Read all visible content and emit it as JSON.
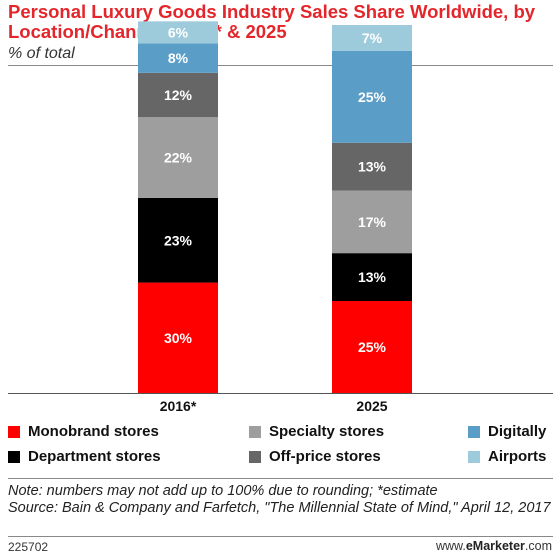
{
  "header": {
    "title": "Personal Luxury Goods Industry Sales Share Worldwide, by Location/Channel, 2016* & 2025",
    "subtitle": "% of total"
  },
  "chart_data": {
    "type": "bar",
    "stacked": true,
    "categories": [
      "2016*",
      "2025"
    ],
    "ylim": [
      0,
      100
    ],
    "grid": false,
    "series": [
      {
        "name": "Monobrand stores",
        "color": "#ff0000",
        "values": [
          30,
          25
        ],
        "labels": [
          "30%",
          "25%"
        ]
      },
      {
        "name": "Department stores",
        "color": "#000000",
        "values": [
          23,
          13
        ],
        "labels": [
          "23%",
          "13%"
        ]
      },
      {
        "name": "Specialty stores",
        "color": "#9e9e9e",
        "values": [
          22,
          17
        ],
        "labels": [
          "22%",
          "17%"
        ]
      },
      {
        "name": "Off-price stores",
        "color": "#666666",
        "values": [
          12,
          13
        ],
        "labels": [
          "12%",
          "13%"
        ]
      },
      {
        "name": "Digitally",
        "color": "#5a9ec8",
        "values": [
          8,
          25
        ],
        "labels": [
          "8%",
          "25%"
        ]
      },
      {
        "name": "Airports",
        "color": "#9ecbdc",
        "values": [
          6,
          7
        ],
        "labels": [
          "6%",
          "7%"
        ]
      }
    ],
    "legend_position": "bottom"
  },
  "note": "Note: numbers may not add up to 100% due to rounding; *estimate",
  "source": "Source: Bain & Company and Farfetch, \"The Millennial State of Mind,\" April 12, 2017",
  "footer": {
    "chart_id": "225702",
    "brand_prefix": "www.",
    "brand_name": "eMarketer",
    "brand_suffix": ".com"
  }
}
